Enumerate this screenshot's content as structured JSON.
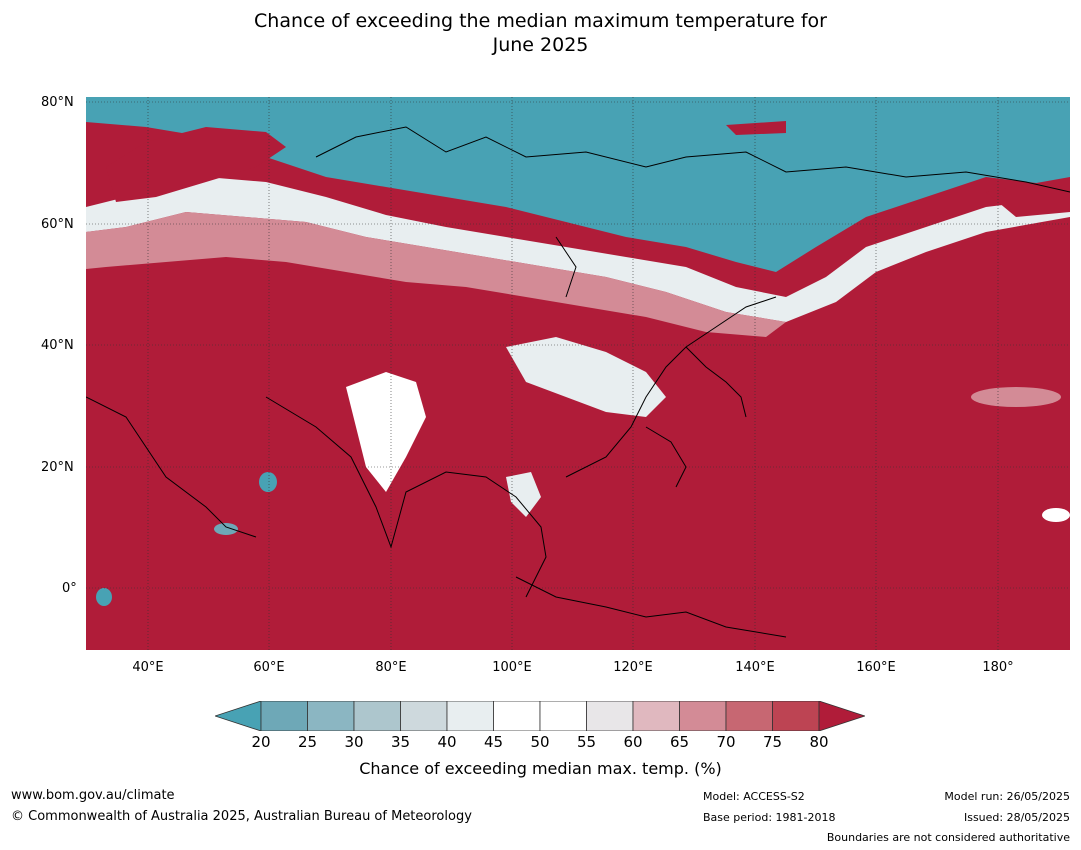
{
  "title_line1": "Chance of exceeding the median maximum temperature for",
  "title_line2": "June 2025",
  "lat_labels": [
    "80°N",
    "60°N",
    "40°N",
    "20°N",
    "0°"
  ],
  "lon_labels": [
    "40°E",
    "60°E",
    "80°E",
    "100°E",
    "120°E",
    "140°E",
    "160°E",
    "180°"
  ],
  "colorbar": {
    "ticks": [
      "20",
      "25",
      "30",
      "35",
      "40",
      "45",
      "50",
      "55",
      "60",
      "65",
      "70",
      "75",
      "80"
    ],
    "label": "Chance of exceeding median max. temp. (%)",
    "colors": [
      "#48a2b4",
      "#6ea8b7",
      "#8bb6c2",
      "#adc6cd",
      "#ced9dd",
      "#e8eef0",
      "#ffffff",
      "#ffffff",
      "#e8e6e8",
      "#e0b8bf",
      "#d38b96",
      "#c76772",
      "#bd4453",
      "#b01c39"
    ]
  },
  "footer": {
    "website": "www.bom.gov.au/climate",
    "copyright": "© Commonwealth of Australia 2025, Australian Bureau of Meteorology",
    "model": "Model: ACCESS-S2",
    "base_period": "Base period: 1981-2018",
    "model_run": "Model run: 26/05/2025",
    "issued": "Issued: 28/05/2025",
    "boundaries": "Boundaries are not considered authoritative"
  }
}
